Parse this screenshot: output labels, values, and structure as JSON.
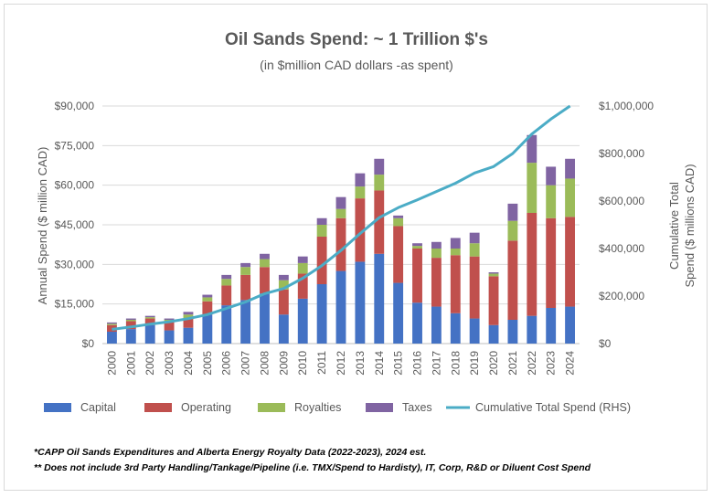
{
  "chart_data": {
    "type": "bar",
    "stacked": true,
    "title": "Oil Sands Spend: ~ 1 Trillion $'s",
    "subtitle": "(in $million CAD dollars -as spent)",
    "ylabel": "Annual Spend ($ million CAD)",
    "y2label_line1": "Cumulative Total",
    "y2label_line2": "Spend ($ millions CAD)",
    "ylim": [
      0,
      90000
    ],
    "y2lim": [
      0,
      1000000
    ],
    "yticks": [
      "$0",
      "$15,000",
      "$30,000",
      "$45,000",
      "$60,000",
      "$75,000",
      "$90,000"
    ],
    "yticks_values": [
      0,
      15000,
      30000,
      45000,
      60000,
      75000,
      90000
    ],
    "y2ticks": [
      "$0",
      "$200,000",
      "$400,000",
      "$600,000",
      "$800,000",
      "$1,000,000"
    ],
    "y2ticks_values": [
      0,
      200000,
      400000,
      600000,
      800000,
      1000000
    ],
    "categories": [
      "2000",
      "2001",
      "2002",
      "2003",
      "2004",
      "2005",
      "2006",
      "2007",
      "2008",
      "2009",
      "2010",
      "2011",
      "2012",
      "2013",
      "2014",
      "2015",
      "2016",
      "2017",
      "2018",
      "2019",
      "2020",
      "2021",
      "2022",
      "2023",
      "2024"
    ],
    "series": [
      {
        "name": "Capital",
        "color": "#4472c4",
        "values": [
          4500,
          5500,
          7000,
          5000,
          6000,
          11000,
          14500,
          16500,
          19000,
          11000,
          17000,
          22500,
          27500,
          31000,
          34000,
          23000,
          15500,
          14000,
          11500,
          9500,
          7000,
          9000,
          10500,
          13500,
          14000
        ]
      },
      {
        "name": "Operating",
        "color": "#c0504d",
        "values": [
          2500,
          3000,
          2500,
          3500,
          3500,
          5000,
          7500,
          9500,
          10000,
          9500,
          9500,
          18000,
          20000,
          24000,
          24000,
          21500,
          20500,
          18500,
          22000,
          23500,
          18500,
          30000,
          39000,
          34000,
          34000
        ]
      },
      {
        "name": "Royalties",
        "color": "#9bbb59",
        "values": [
          500,
          500,
          500,
          500,
          1500,
          1500,
          2500,
          3000,
          3000,
          3500,
          4000,
          4500,
          3500,
          4500,
          6000,
          3000,
          1000,
          3500,
          2500,
          5000,
          1000,
          7500,
          19000,
          12500,
          14500
        ]
      },
      {
        "name": "Taxes",
        "color": "#8064a2",
        "values": [
          500,
          500,
          500,
          500,
          1000,
          1000,
          1500,
          1500,
          2000,
          2000,
          2500,
          2500,
          4500,
          5000,
          6000,
          1000,
          1000,
          2500,
          4000,
          4000,
          500,
          6500,
          10500,
          7000,
          7500
        ]
      }
    ],
    "line_series": {
      "name": "Cumulative Total Spend (RHS)",
      "color": "#4bacc6",
      "axis": "right",
      "values": [
        60000,
        70000,
        82000,
        92000,
        105000,
        122000,
        148000,
        175000,
        210000,
        232000,
        275000,
        328000,
        392000,
        463000,
        530000,
        572000,
        605000,
        640000,
        675000,
        718000,
        745000,
        800000,
        882000,
        945000,
        1010000
      ]
    },
    "legend_position": "bottom",
    "grid": true,
    "notes": [
      "*CAPP Oil Sands Expenditures and Alberta Energy Royalty Data (2022-2023), 2024 est.",
      "** Does not include 3rd Party Handling/Tankage/Pipeline (i.e. TMX/Spend to Hardisty), IT, Corp, R&D or Diluent Cost Spend"
    ]
  }
}
